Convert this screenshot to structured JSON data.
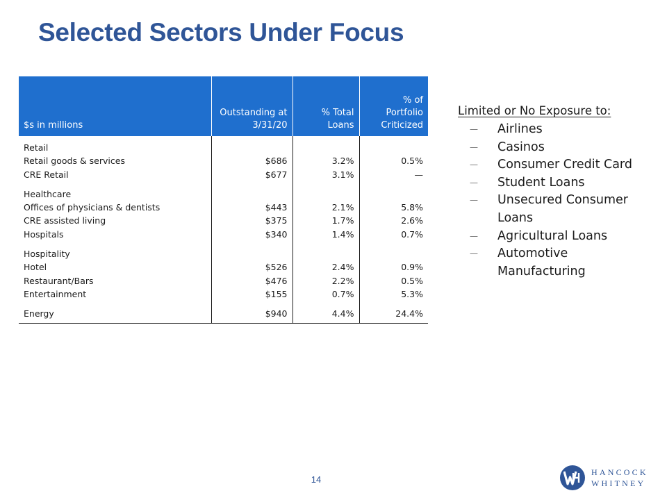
{
  "title": "Selected Sectors Under Focus",
  "table": {
    "headers": [
      "$s in millions",
      "Outstanding at\n3/31/20",
      "% Total\nLoans",
      "% of\nPortfolio\nCriticized"
    ],
    "groups": [
      {
        "name": "Retail",
        "rows": [
          {
            "label": "Retail goods & services",
            "outstanding": "$686",
            "pct_total": "3.2%",
            "pct_criticized": "0.5%"
          },
          {
            "label": "CRE Retail",
            "outstanding": "$677",
            "pct_total": "3.1%",
            "pct_criticized": "—"
          }
        ]
      },
      {
        "name": "Healthcare",
        "rows": [
          {
            "label": "Offices of physicians & dentists",
            "outstanding": "$443",
            "pct_total": "2.1%",
            "pct_criticized": "5.8%"
          },
          {
            "label": "CRE assisted living",
            "outstanding": "$375",
            "pct_total": "1.7%",
            "pct_criticized": "2.6%"
          },
          {
            "label": "Hospitals",
            "outstanding": "$340",
            "pct_total": "1.4%",
            "pct_criticized": "0.7%"
          }
        ]
      },
      {
        "name": "Hospitality",
        "rows": [
          {
            "label": "Hotel",
            "outstanding": "$526",
            "pct_total": "2.4%",
            "pct_criticized": "0.9%"
          },
          {
            "label": "Restaurant/Bars",
            "outstanding": "$476",
            "pct_total": "2.2%",
            "pct_criticized": "0.5%"
          },
          {
            "label": "Entertainment",
            "outstanding": "$155",
            "pct_total": "0.7%",
            "pct_criticized": "5.3%"
          }
        ]
      }
    ],
    "total_row": {
      "label": "Energy",
      "outstanding": "$940",
      "pct_total": "4.4%",
      "pct_criticized": "24.4%"
    }
  },
  "sidebar": {
    "title": "Limited or No Exposure to:",
    "items": [
      "Airlines",
      "Casinos",
      "Consumer Credit Card",
      "Student Loans",
      "Unsecured Consumer Loans",
      "Agricultural Loans",
      "Automotive Manufacturing"
    ]
  },
  "page_number": "14",
  "logo": {
    "line1": "HANCOCK",
    "line2": "WHITNEY"
  },
  "colors": {
    "title": "#2f5597",
    "header_bg": "#1f6fce",
    "logo": "#2f5597"
  }
}
